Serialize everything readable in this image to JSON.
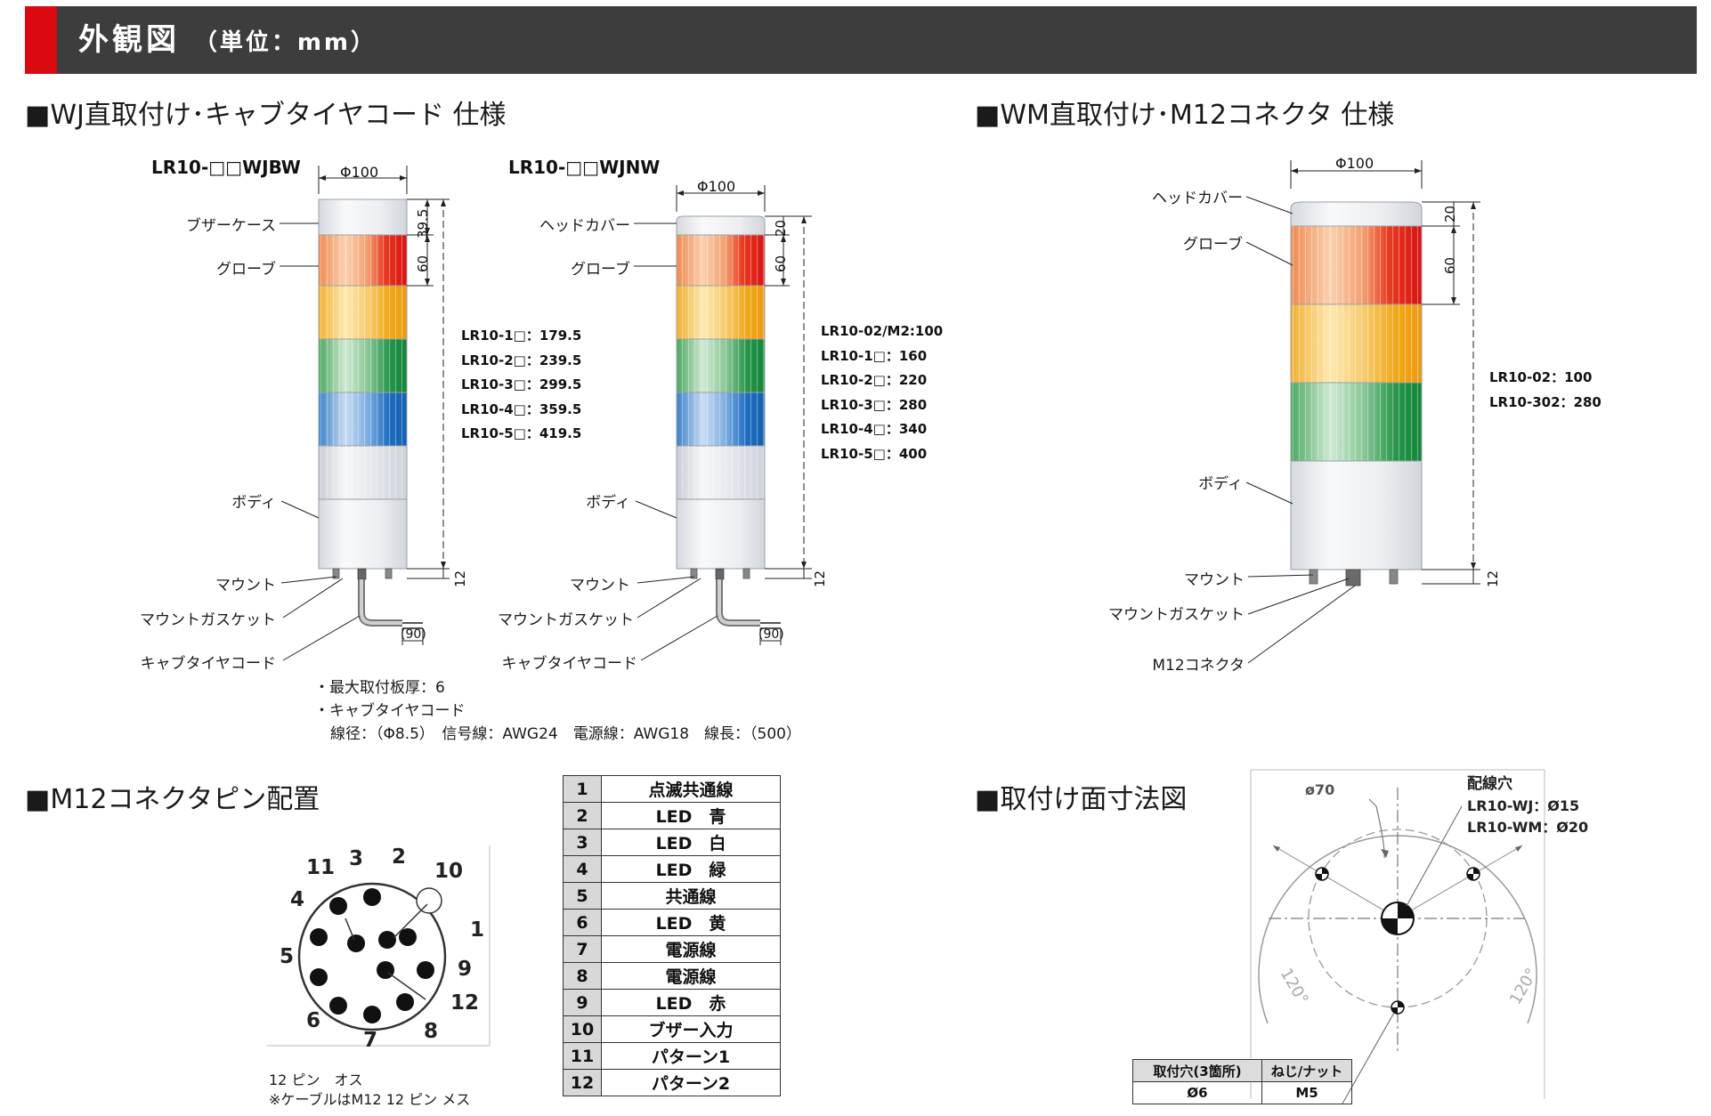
{
  "header": {
    "title": "外観図",
    "unit": "（単位：mm）",
    "accent_color": "#d90a12",
    "bar_color": "#3d3d3d"
  },
  "sections": {
    "wj": "■WJ直取付け･キャブタイヤコード 仕様",
    "wm": "■WM直取付け･M12コネクタ 仕様",
    "pins": "■M12コネクタピン配置",
    "mount": "■取付け面寸法図"
  },
  "wj_buzzer": {
    "model": "LR10-□□WJBW",
    "dia": "Φ100",
    "dims": {
      "top": "39.5",
      "globe": "60",
      "base": "12",
      "cable": "(90)"
    },
    "labels": {
      "case": "ブザーケース",
      "globe": "グローブ",
      "body": "ボディ",
      "mount": "マウント",
      "gasket": "マウントガスケット",
      "cord": "キャブタイヤコード"
    },
    "heights": [
      "LR10-1□：179.5",
      "LR10-2□：239.5",
      "LR10-3□：299.5",
      "LR10-4□：359.5",
      "LR10-5□：419.5"
    ]
  },
  "wj_nobuzzer": {
    "model": "LR10-□□WJNW",
    "dia": "Φ100",
    "dims": {
      "top": "20",
      "globe": "60",
      "base": "12",
      "cable": "(90)"
    },
    "labels": {
      "cover": "ヘッドカバー",
      "globe": "グローブ",
      "body": "ボディ",
      "mount": "マウント",
      "gasket": "マウントガスケット",
      "cord": "キャブタイヤコード"
    },
    "heights": [
      "LR10-02/M2:100",
      "LR10-1□：160",
      "LR10-2□：220",
      "LR10-3□：280",
      "LR10-4□：340",
      "LR10-5□：400"
    ]
  },
  "wj_notes": [
    "・最大取付板厚：6",
    "・キャブタイヤコード",
    "線径：（Φ8.5）　信号線：AWG24　電源線：AWG18　線長：（500）"
  ],
  "wm": {
    "dia": "Φ100",
    "dims": {
      "top": "20",
      "globe": "60",
      "base": "12"
    },
    "labels": {
      "cover": "ヘッドカバー",
      "globe": "グローブ",
      "body": "ボディ",
      "mount": "マウント",
      "gasket": "マウントガスケット",
      "connector": "M12コネクタ"
    },
    "heights": [
      "LR10-02：100",
      "LR10-302：280"
    ]
  },
  "pin_diagram": {
    "numbers": [
      "1",
      "2",
      "3",
      "4",
      "5",
      "6",
      "7",
      "8",
      "9",
      "10",
      "11",
      "12"
    ],
    "caption": [
      "12 ピン　オス",
      "※ケーブルはM12 12 ピン メス"
    ]
  },
  "pin_table": [
    {
      "pin": "1",
      "fn": "点滅共通線"
    },
    {
      "pin": "2",
      "fn": "LED　青"
    },
    {
      "pin": "3",
      "fn": "LED　白"
    },
    {
      "pin": "4",
      "fn": "LED　緑"
    },
    {
      "pin": "5",
      "fn": "共通線"
    },
    {
      "pin": "6",
      "fn": "LED　黄"
    },
    {
      "pin": "7",
      "fn": "電源線"
    },
    {
      "pin": "8",
      "fn": "電源線"
    },
    {
      "pin": "9",
      "fn": "LED　赤"
    },
    {
      "pin": "10",
      "fn": "ブザー入力"
    },
    {
      "pin": "11",
      "fn": "パターン1"
    },
    {
      "pin": "12",
      "fn": "パターン2"
    }
  ],
  "mount_diagram": {
    "dia": "ø70",
    "hole_title": "配線穴",
    "hole_wj": "LR10-WJ：Ø15",
    "hole_wm": "LR10-WM：Ø20",
    "angle_left": "120°",
    "angle_right": "120°",
    "table": {
      "h1": "取付穴(3箇所)",
      "h2": "ねじ/ナット",
      "v1": "Ø6",
      "v2": "M5"
    }
  }
}
